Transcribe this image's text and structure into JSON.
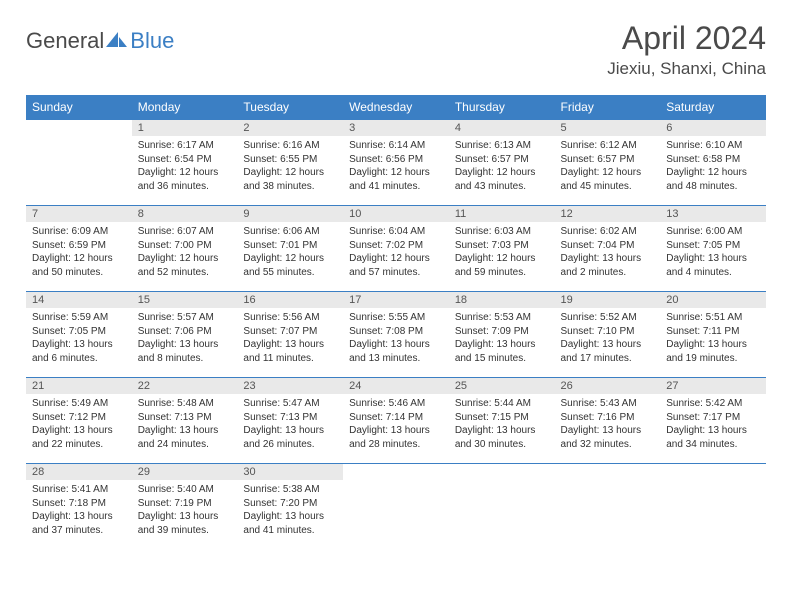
{
  "logo": {
    "text1": "General",
    "text2": "Blue"
  },
  "title": "April 2024",
  "location": "Jiexiu, Shanxi, China",
  "colors": {
    "header_bg": "#3b7fc4",
    "header_text": "#ffffff",
    "daynum_bg": "#e9e9e9",
    "border": "#3b7fc4",
    "page_bg": "#ffffff",
    "text": "#333333"
  },
  "weekdays": [
    "Sunday",
    "Monday",
    "Tuesday",
    "Wednesday",
    "Thursday",
    "Friday",
    "Saturday"
  ],
  "weeks": [
    [
      null,
      {
        "n": "1",
        "sr": "Sunrise: 6:17 AM",
        "ss": "Sunset: 6:54 PM",
        "d1": "Daylight: 12 hours",
        "d2": "and 36 minutes."
      },
      {
        "n": "2",
        "sr": "Sunrise: 6:16 AM",
        "ss": "Sunset: 6:55 PM",
        "d1": "Daylight: 12 hours",
        "d2": "and 38 minutes."
      },
      {
        "n": "3",
        "sr": "Sunrise: 6:14 AM",
        "ss": "Sunset: 6:56 PM",
        "d1": "Daylight: 12 hours",
        "d2": "and 41 minutes."
      },
      {
        "n": "4",
        "sr": "Sunrise: 6:13 AM",
        "ss": "Sunset: 6:57 PM",
        "d1": "Daylight: 12 hours",
        "d2": "and 43 minutes."
      },
      {
        "n": "5",
        "sr": "Sunrise: 6:12 AM",
        "ss": "Sunset: 6:57 PM",
        "d1": "Daylight: 12 hours",
        "d2": "and 45 minutes."
      },
      {
        "n": "6",
        "sr": "Sunrise: 6:10 AM",
        "ss": "Sunset: 6:58 PM",
        "d1": "Daylight: 12 hours",
        "d2": "and 48 minutes."
      }
    ],
    [
      {
        "n": "7",
        "sr": "Sunrise: 6:09 AM",
        "ss": "Sunset: 6:59 PM",
        "d1": "Daylight: 12 hours",
        "d2": "and 50 minutes."
      },
      {
        "n": "8",
        "sr": "Sunrise: 6:07 AM",
        "ss": "Sunset: 7:00 PM",
        "d1": "Daylight: 12 hours",
        "d2": "and 52 minutes."
      },
      {
        "n": "9",
        "sr": "Sunrise: 6:06 AM",
        "ss": "Sunset: 7:01 PM",
        "d1": "Daylight: 12 hours",
        "d2": "and 55 minutes."
      },
      {
        "n": "10",
        "sr": "Sunrise: 6:04 AM",
        "ss": "Sunset: 7:02 PM",
        "d1": "Daylight: 12 hours",
        "d2": "and 57 minutes."
      },
      {
        "n": "11",
        "sr": "Sunrise: 6:03 AM",
        "ss": "Sunset: 7:03 PM",
        "d1": "Daylight: 12 hours",
        "d2": "and 59 minutes."
      },
      {
        "n": "12",
        "sr": "Sunrise: 6:02 AM",
        "ss": "Sunset: 7:04 PM",
        "d1": "Daylight: 13 hours",
        "d2": "and 2 minutes."
      },
      {
        "n": "13",
        "sr": "Sunrise: 6:00 AM",
        "ss": "Sunset: 7:05 PM",
        "d1": "Daylight: 13 hours",
        "d2": "and 4 minutes."
      }
    ],
    [
      {
        "n": "14",
        "sr": "Sunrise: 5:59 AM",
        "ss": "Sunset: 7:05 PM",
        "d1": "Daylight: 13 hours",
        "d2": "and 6 minutes."
      },
      {
        "n": "15",
        "sr": "Sunrise: 5:57 AM",
        "ss": "Sunset: 7:06 PM",
        "d1": "Daylight: 13 hours",
        "d2": "and 8 minutes."
      },
      {
        "n": "16",
        "sr": "Sunrise: 5:56 AM",
        "ss": "Sunset: 7:07 PM",
        "d1": "Daylight: 13 hours",
        "d2": "and 11 minutes."
      },
      {
        "n": "17",
        "sr": "Sunrise: 5:55 AM",
        "ss": "Sunset: 7:08 PM",
        "d1": "Daylight: 13 hours",
        "d2": "and 13 minutes."
      },
      {
        "n": "18",
        "sr": "Sunrise: 5:53 AM",
        "ss": "Sunset: 7:09 PM",
        "d1": "Daylight: 13 hours",
        "d2": "and 15 minutes."
      },
      {
        "n": "19",
        "sr": "Sunrise: 5:52 AM",
        "ss": "Sunset: 7:10 PM",
        "d1": "Daylight: 13 hours",
        "d2": "and 17 minutes."
      },
      {
        "n": "20",
        "sr": "Sunrise: 5:51 AM",
        "ss": "Sunset: 7:11 PM",
        "d1": "Daylight: 13 hours",
        "d2": "and 19 minutes."
      }
    ],
    [
      {
        "n": "21",
        "sr": "Sunrise: 5:49 AM",
        "ss": "Sunset: 7:12 PM",
        "d1": "Daylight: 13 hours",
        "d2": "and 22 minutes."
      },
      {
        "n": "22",
        "sr": "Sunrise: 5:48 AM",
        "ss": "Sunset: 7:13 PM",
        "d1": "Daylight: 13 hours",
        "d2": "and 24 minutes."
      },
      {
        "n": "23",
        "sr": "Sunrise: 5:47 AM",
        "ss": "Sunset: 7:13 PM",
        "d1": "Daylight: 13 hours",
        "d2": "and 26 minutes."
      },
      {
        "n": "24",
        "sr": "Sunrise: 5:46 AM",
        "ss": "Sunset: 7:14 PM",
        "d1": "Daylight: 13 hours",
        "d2": "and 28 minutes."
      },
      {
        "n": "25",
        "sr": "Sunrise: 5:44 AM",
        "ss": "Sunset: 7:15 PM",
        "d1": "Daylight: 13 hours",
        "d2": "and 30 minutes."
      },
      {
        "n": "26",
        "sr": "Sunrise: 5:43 AM",
        "ss": "Sunset: 7:16 PM",
        "d1": "Daylight: 13 hours",
        "d2": "and 32 minutes."
      },
      {
        "n": "27",
        "sr": "Sunrise: 5:42 AM",
        "ss": "Sunset: 7:17 PM",
        "d1": "Daylight: 13 hours",
        "d2": "and 34 minutes."
      }
    ],
    [
      {
        "n": "28",
        "sr": "Sunrise: 5:41 AM",
        "ss": "Sunset: 7:18 PM",
        "d1": "Daylight: 13 hours",
        "d2": "and 37 minutes."
      },
      {
        "n": "29",
        "sr": "Sunrise: 5:40 AM",
        "ss": "Sunset: 7:19 PM",
        "d1": "Daylight: 13 hours",
        "d2": "and 39 minutes."
      },
      {
        "n": "30",
        "sr": "Sunrise: 5:38 AM",
        "ss": "Sunset: 7:20 PM",
        "d1": "Daylight: 13 hours",
        "d2": "and 41 minutes."
      },
      null,
      null,
      null,
      null
    ]
  ]
}
